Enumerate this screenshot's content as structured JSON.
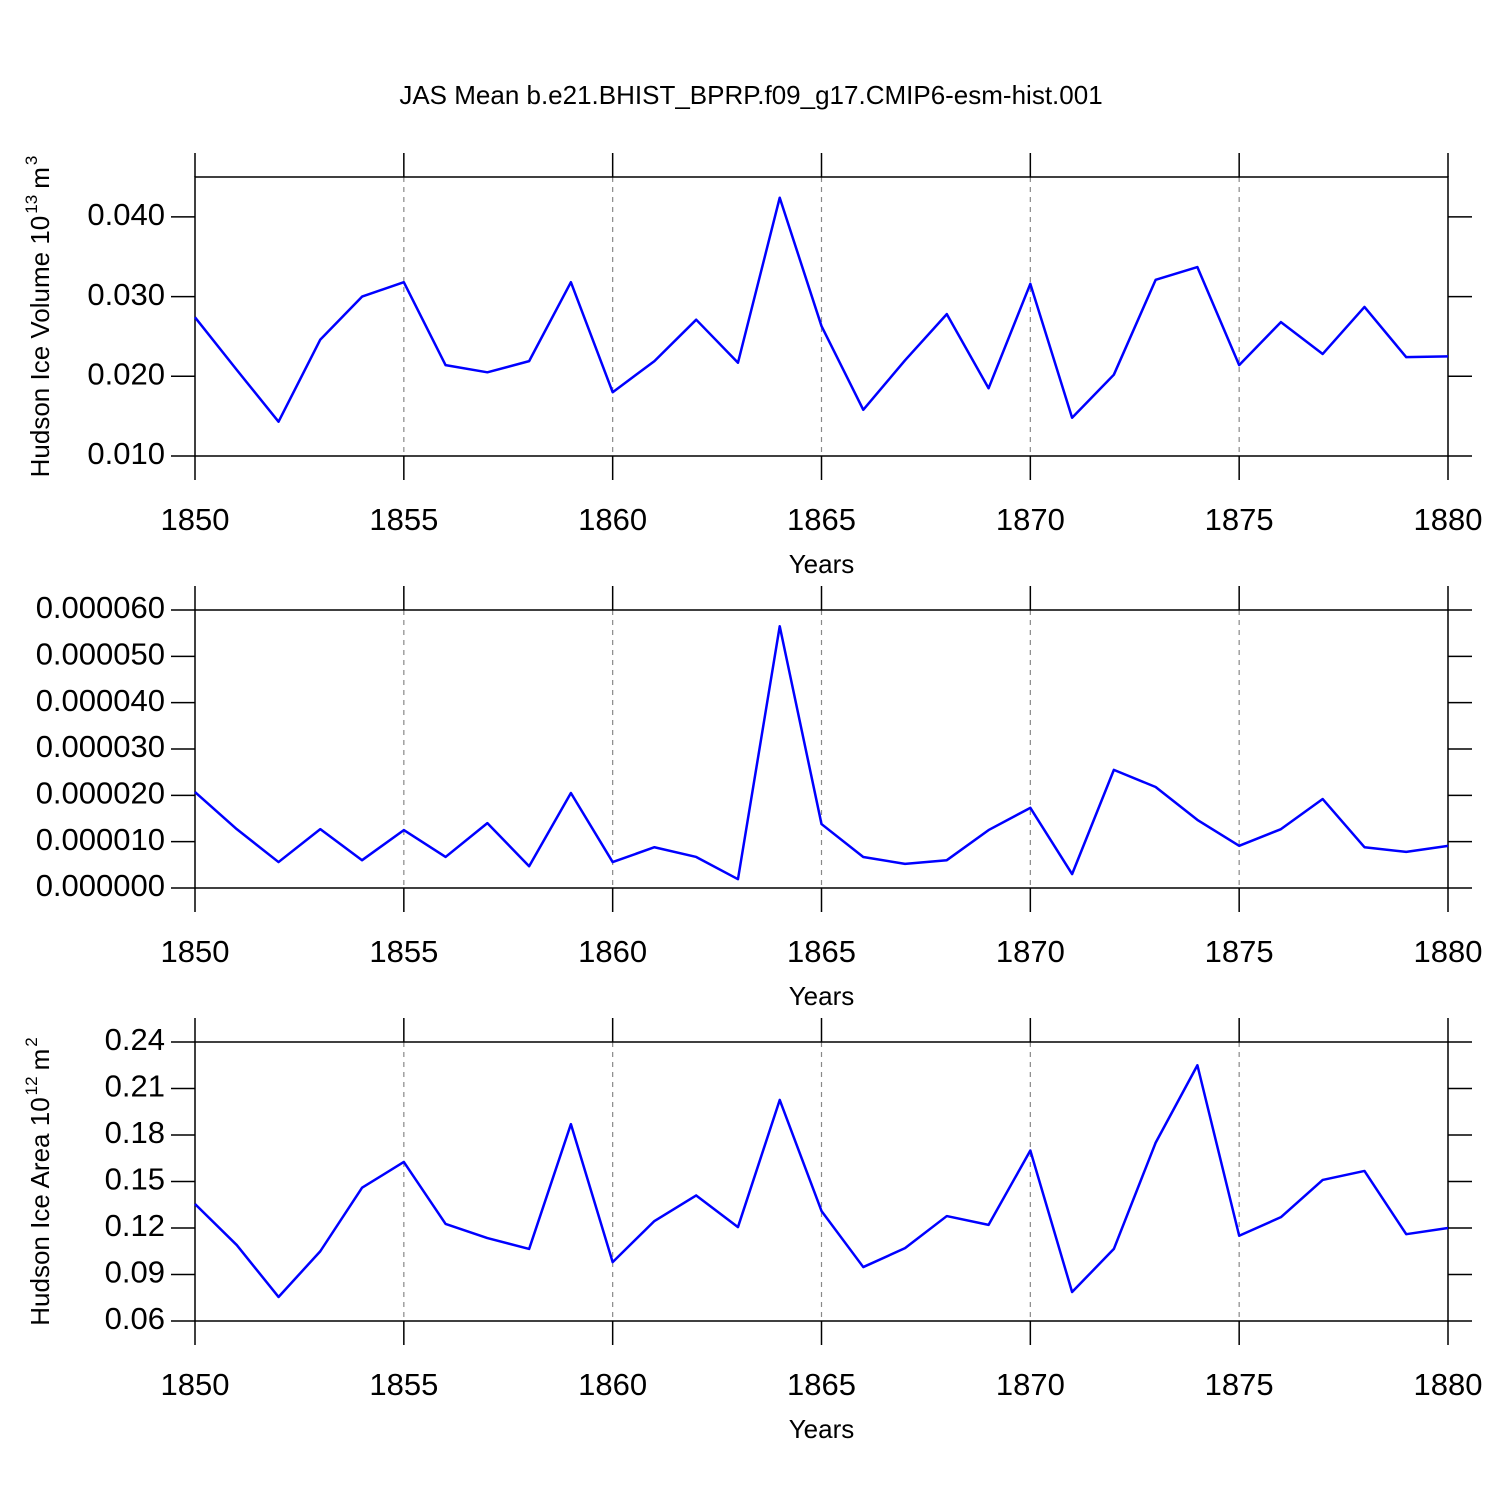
{
  "chart_data": [
    {
      "type": "line",
      "title": "JAS Mean b.e21.BHIST_BPRP.f09_g17.CMIP6-esm-hist.001",
      "ylabel_parts": [
        {
          "text": "Hudson Ice Volume 10"
        },
        {
          "text": "13",
          "sup": true
        },
        {
          "text": "m"
        },
        {
          "text": "3",
          "sup": true
        }
      ],
      "xlabel": "Years",
      "color": "#0000ff",
      "xgrid": true,
      "x": [
        1850,
        1851,
        1852,
        1853,
        1854,
        1855,
        1856,
        1857,
        1858,
        1859,
        1860,
        1861,
        1862,
        1863,
        1864,
        1865,
        1866,
        1867,
        1868,
        1869,
        1870,
        1871,
        1872,
        1873,
        1874,
        1875,
        1876,
        1877,
        1878,
        1879,
        1880
      ],
      "values": [
        0.0274,
        0.0208,
        0.0143,
        0.0246,
        0.03,
        0.0318,
        0.0214,
        0.0205,
        0.0219,
        0.0318,
        0.018,
        0.0219,
        0.0271,
        0.0217,
        0.0424,
        0.0263,
        0.0158,
        0.022,
        0.0278,
        0.0185,
        0.0316,
        0.0148,
        0.0202,
        0.0321,
        0.0337,
        0.0214,
        0.0268,
        0.0228,
        0.0287,
        0.0224,
        0.0225
      ],
      "xlim": [
        1850,
        1880
      ],
      "xticks": [
        1850,
        1855,
        1860,
        1865,
        1870,
        1875,
        1880
      ],
      "ylim": [
        0.01,
        0.045
      ],
      "yticks": [
        {
          "value": 0.01,
          "label": "0.010"
        },
        {
          "value": 0.02,
          "label": "0.020"
        },
        {
          "value": 0.03,
          "label": "0.030"
        },
        {
          "value": 0.04,
          "label": "0.040"
        }
      ]
    },
    {
      "type": "line",
      "xlabel": "Years",
      "color": "#0000ff",
      "xgrid": true,
      "x": [
        1850,
        1851,
        1852,
        1853,
        1854,
        1855,
        1856,
        1857,
        1858,
        1859,
        1860,
        1861,
        1862,
        1863,
        1864,
        1865,
        1866,
        1867,
        1868,
        1869,
        1870,
        1871,
        1872,
        1873,
        1874,
        1875,
        1876,
        1877,
        1878,
        1879,
        1880
      ],
      "values": [
        2.07e-05,
        1.27e-05,
        5.6e-06,
        1.27e-05,
        6e-06,
        1.25e-05,
        6.7e-06,
        1.4e-05,
        4.7e-06,
        2.05e-05,
        5.6e-06,
        8.8e-06,
        6.7e-06,
        1.9e-06,
        5.65e-05,
        1.38e-05,
        6.7e-06,
        5.2e-06,
        6e-06,
        1.25e-05,
        1.73e-05,
        3e-06,
        2.55e-05,
        2.18e-05,
        1.47e-05,
        9.1e-06,
        1.27e-05,
        1.92e-05,
        8.8e-06,
        7.8e-06,
        9.1e-06
      ],
      "xlim": [
        1850,
        1880
      ],
      "xticks": [
        1850,
        1855,
        1860,
        1865,
        1870,
        1875,
        1880
      ],
      "ylim": [
        0,
        6e-05
      ],
      "yticks": [
        {
          "value": 0,
          "label": "0.000000"
        },
        {
          "value": 1e-05,
          "label": "0.000010"
        },
        {
          "value": 2e-05,
          "label": "0.000020"
        },
        {
          "value": 3e-05,
          "label": "0.000030"
        },
        {
          "value": 4e-05,
          "label": "0.000040"
        },
        {
          "value": 5e-05,
          "label": "0.000050"
        },
        {
          "value": 6e-05,
          "label": "0.000060"
        }
      ]
    },
    {
      "type": "line",
      "ylabel_parts": [
        {
          "text": "Hudson Ice Area 10"
        },
        {
          "text": "12",
          "sup": true
        },
        {
          "text": "m"
        },
        {
          "text": "2",
          "sup": true
        }
      ],
      "xlabel": "Years",
      "color": "#0000ff",
      "xgrid": true,
      "x": [
        1850,
        1851,
        1852,
        1853,
        1854,
        1855,
        1856,
        1857,
        1858,
        1859,
        1860,
        1861,
        1862,
        1863,
        1864,
        1865,
        1866,
        1867,
        1868,
        1869,
        1870,
        1871,
        1872,
        1873,
        1874,
        1875,
        1876,
        1877,
        1878,
        1879,
        1880
      ],
      "values": [
        0.1355,
        0.109,
        0.0755,
        0.105,
        0.146,
        0.1626,
        0.1226,
        0.1135,
        0.1065,
        0.187,
        0.098,
        0.1245,
        0.141,
        0.1206,
        0.2026,
        0.131,
        0.0948,
        0.107,
        0.1277,
        0.122,
        0.17,
        0.0787,
        0.1065,
        0.175,
        0.225,
        0.115,
        0.127,
        0.151,
        0.1568,
        0.116,
        0.12
      ],
      "xlim": [
        1850,
        1880
      ],
      "xticks": [
        1850,
        1855,
        1860,
        1865,
        1870,
        1875,
        1880
      ],
      "ylim": [
        0.06,
        0.24
      ],
      "yticks": [
        0.06,
        0.09,
        0.12,
        0.15,
        0.18,
        0.21,
        0.24
      ]
    }
  ]
}
